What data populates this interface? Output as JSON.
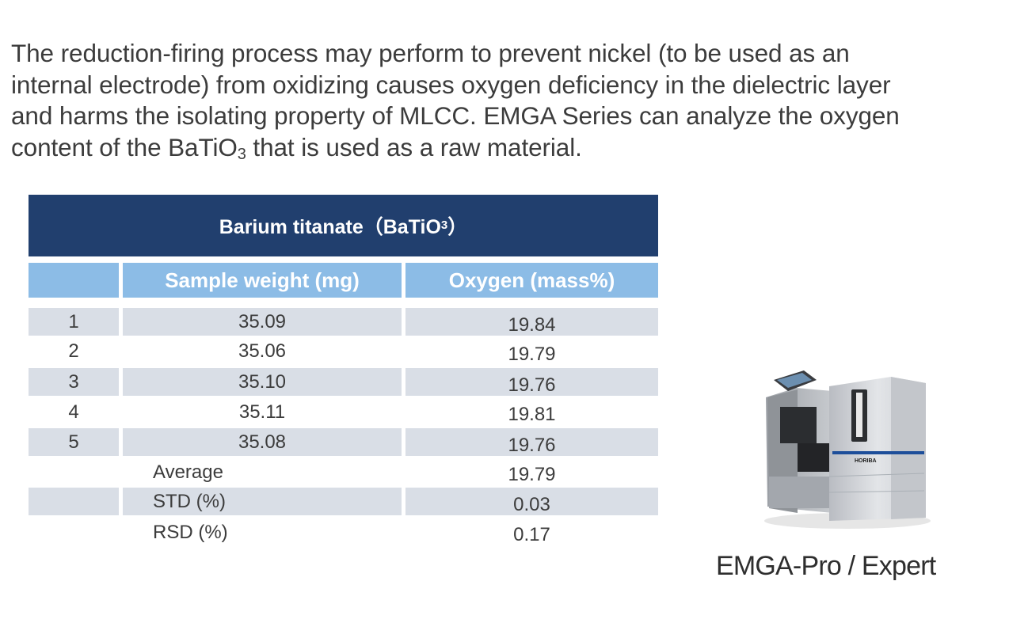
{
  "intro": {
    "line1": "The reduction-firing process may perform to prevent nickel (to be used as an",
    "line2": "internal electrode) from oxidizing causes oxygen deficiency in the dielectric layer",
    "line3": "and harms the isolating property of MLCC.  EMGA Series can analyze the oxygen",
    "line4_pre": "content of the BaTiO",
    "line4_sub": "3",
    "line4_post": " that is used as a raw material."
  },
  "table": {
    "title_pre": "Barium titanate（BaTiO",
    "title_sub": "3",
    "title_post": "）",
    "headers": [
      "Sample weight (mg)",
      "Oxygen (mass%)"
    ],
    "rows": [
      {
        "no": "1",
        "weight": "35.09",
        "oxygen": "19.84"
      },
      {
        "no": "2",
        "weight": "35.06",
        "oxygen": "19.79"
      },
      {
        "no": "3",
        "weight": "35.10",
        "oxygen": "19.76"
      },
      {
        "no": "4",
        "weight": "35.11",
        "oxygen": "19.81"
      },
      {
        "no": "5",
        "weight": "35.08",
        "oxygen": "19.76"
      }
    ],
    "summary": [
      {
        "label": "Average",
        "value": "19.79"
      },
      {
        "label": "STD (%)",
        "value": "0.03"
      },
      {
        "label": "RSD (%)",
        "value": "0.17"
      }
    ]
  },
  "product": {
    "brand": "HORIBA",
    "caption": "EMGA-Pro / Expert"
  }
}
